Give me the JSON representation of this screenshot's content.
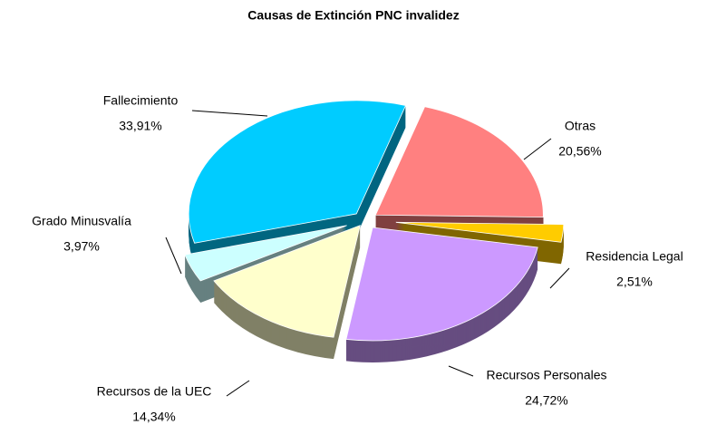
{
  "chart_data": {
    "type": "pie",
    "title": "Causas de Extinción PNC invalidez",
    "categories": [
      "Fallecimiento",
      "Otras",
      "Residencia Legal",
      "Recursos Personales",
      "Recursos de la UEC",
      "Grado Minusvalía"
    ],
    "values": [
      33.91,
      20.56,
      2.51,
      24.72,
      14.34,
      3.97
    ],
    "value_labels": [
      "33,91%",
      "20,56%",
      "2,51%",
      "24,72%",
      "14,34%",
      "3,97%"
    ],
    "colors": [
      "#00ccff",
      "#ff8080",
      "#ffcc00",
      "#cc99ff",
      "#ffffcc",
      "#ccffff"
    ]
  }
}
